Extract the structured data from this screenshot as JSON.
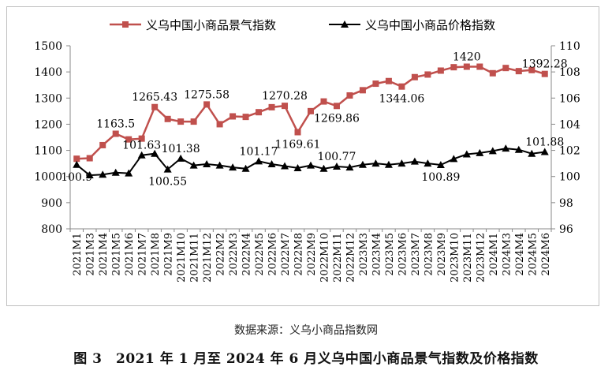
{
  "chart_data": {
    "type": "line",
    "categories": [
      "2021M1",
      "2021M3",
      "2021M4",
      "2021M5",
      "2021M6",
      "2021M7",
      "2021M8",
      "2021M9",
      "2021M10",
      "2021M11",
      "2021M12",
      "2022M2",
      "2022M3",
      "2022M4",
      "2022M5",
      "2022M6",
      "2022M7",
      "2022M8",
      "2022M9",
      "2022M10",
      "2022M11",
      "2022M12",
      "2023M3",
      "2023M4",
      "2023M5",
      "2023M6",
      "2023M7",
      "2023M8",
      "2023M9",
      "2023M10",
      "2023M11",
      "2023M12",
      "2024M1",
      "2024M3",
      "2024M4",
      "2024M5",
      "2024M6"
    ],
    "series": [
      {
        "name": "义乌中国小商品景气指数",
        "axis": "left",
        "color": "#c0504d",
        "marker": "square",
        "values": [
          1068,
          1070,
          1120,
          1163.5,
          1142,
          1145,
          1265.43,
          1220,
          1210,
          1210,
          1275.58,
          1200,
          1230,
          1228,
          1246,
          1265,
          1270.28,
          1169.61,
          1250,
          1287,
          1269.86,
          1310,
          1330,
          1355,
          1365,
          1344.06,
          1380,
          1390,
          1405,
          1418,
          1420,
          1420,
          1395,
          1415,
          1403,
          1407,
          1392.28
        ]
      },
      {
        "name": "义乌中国小商品价格指数",
        "axis": "right",
        "color": "#000000",
        "marker": "triangle",
        "values": [
          100.9,
          100.1,
          100.15,
          100.3,
          100.25,
          101.63,
          101.75,
          100.55,
          101.38,
          100.85,
          100.95,
          100.85,
          100.7,
          100.6,
          101.17,
          100.95,
          100.8,
          100.65,
          100.85,
          100.6,
          100.77,
          100.7,
          100.9,
          101.0,
          100.9,
          101.0,
          101.15,
          101.0,
          100.89,
          101.35,
          101.7,
          101.8,
          101.95,
          102.15,
          102.05,
          101.75,
          101.88
        ]
      }
    ],
    "y_left": {
      "min": 800,
      "max": 1500,
      "ticks": [
        "800",
        "900",
        "1000",
        "1100",
        "1200",
        "1300",
        "1400",
        "1500"
      ]
    },
    "y_right": {
      "min": 96,
      "max": 110,
      "ticks": [
        "96",
        "98",
        "100",
        "102",
        "104",
        "106",
        "108",
        "110"
      ]
    },
    "annotations": [
      {
        "series": 0,
        "index": 3,
        "text": "1163.5",
        "pos": "above"
      },
      {
        "series": 0,
        "index": 6,
        "text": "1265.43",
        "pos": "above"
      },
      {
        "series": 0,
        "index": 10,
        "text": "1275.58",
        "pos": "above"
      },
      {
        "series": 0,
        "index": 16,
        "text": "1270.28",
        "pos": "above"
      },
      {
        "series": 0,
        "index": 17,
        "text": "1169.61",
        "pos": "below"
      },
      {
        "series": 0,
        "index": 20,
        "text": "1269.86",
        "pos": "below"
      },
      {
        "series": 0,
        "index": 25,
        "text": "1344.06",
        "pos": "below"
      },
      {
        "series": 0,
        "index": 30,
        "text": "1420",
        "pos": "above"
      },
      {
        "series": 0,
        "index": 36,
        "text": "1392.28",
        "pos": "above"
      },
      {
        "series": 1,
        "index": 0,
        "text": "100.9",
        "pos": "below"
      },
      {
        "series": 1,
        "index": 5,
        "text": "101.63",
        "pos": "above"
      },
      {
        "series": 1,
        "index": 7,
        "text": "100.55",
        "pos": "below"
      },
      {
        "series": 1,
        "index": 8,
        "text": "101.38",
        "pos": "above"
      },
      {
        "series": 1,
        "index": 14,
        "text": "101.17",
        "pos": "above"
      },
      {
        "series": 1,
        "index": 20,
        "text": "100.77",
        "pos": "above"
      },
      {
        "series": 1,
        "index": 28,
        "text": "100.89",
        "pos": "below"
      },
      {
        "series": 1,
        "index": 36,
        "text": "101.88",
        "pos": "above"
      }
    ],
    "legend_position": "top",
    "grid": false
  },
  "source_text": "数据来源：义乌小商品指数网",
  "caption_text": "图 3　2021 年 1 月至 2024 年 6 月义乌中国小商品景气指数及价格指数"
}
